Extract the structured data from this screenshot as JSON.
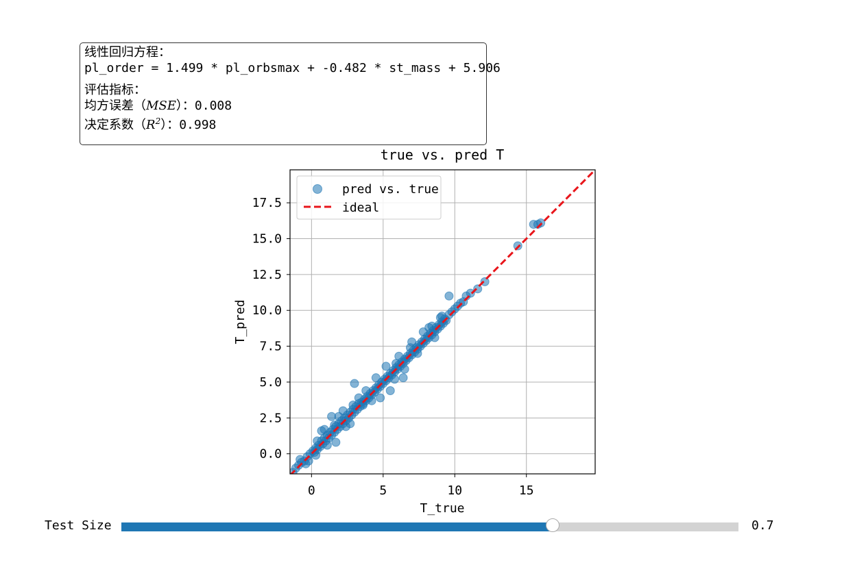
{
  "info_box": {
    "equation_heading": "线性回归方程：",
    "equation": "pl_order = 1.499 * pl_orbsmax + -0.482 * st_mass + 5.906",
    "metrics_heading": "评估指标：",
    "mse_prefix": "均方误差（",
    "mse_symbol": "MSE",
    "mse_suffix": "）：0.008",
    "r2_prefix": "决定系数（",
    "r2_symbol": "R",
    "r2_exp": "2",
    "r2_suffix": "）：0.998"
  },
  "slider": {
    "label": "Test Size",
    "value_text": "0.7",
    "value": 0.7,
    "fill_fraction": 0.7,
    "fill_color": "#1f77b4",
    "track_color": "#d3d3d3"
  },
  "chart_data": {
    "type": "scatter",
    "title": "true vs. pred T",
    "xlabel": "T_true",
    "ylabel": "T_pred",
    "xlim": [
      -1.5,
      19.8
    ],
    "ylim": [
      -1.4,
      19.8
    ],
    "xticks": [
      0,
      5,
      10,
      15
    ],
    "xtick_labels": [
      "0",
      "5",
      "10",
      "15"
    ],
    "yticks": [
      0.0,
      2.5,
      5.0,
      7.5,
      10.0,
      12.5,
      15.0,
      17.5
    ],
    "ytick_labels": [
      "0.0",
      "2.5",
      "5.0",
      "7.5",
      "10.0",
      "12.5",
      "15.0",
      "17.5"
    ],
    "grid": true,
    "legend_position": "top-left",
    "series": [
      {
        "name": "pred vs. true",
        "kind": "scatter",
        "color": "#1f77b4",
        "alpha": 0.55,
        "points": [
          [
            -1.3,
            -1.3
          ],
          [
            -1.1,
            -1.0
          ],
          [
            -0.9,
            -0.8
          ],
          [
            -0.7,
            -0.6
          ],
          [
            -0.5,
            -0.5
          ],
          [
            -0.3,
            -0.2
          ],
          [
            -0.1,
            0.0
          ],
          [
            -0.2,
            -0.5
          ],
          [
            0.1,
            0.2
          ],
          [
            0.2,
            0.1
          ],
          [
            0.3,
            0.4
          ],
          [
            0.4,
            0.3
          ],
          [
            0.5,
            0.6
          ],
          [
            0.6,
            0.5
          ],
          [
            0.7,
            0.9
          ],
          [
            0.8,
            0.7
          ],
          [
            0.9,
            1.1
          ],
          [
            1.0,
            0.9
          ],
          [
            1.1,
            1.3
          ],
          [
            1.2,
            1.1
          ],
          [
            1.3,
            1.5
          ],
          [
            1.4,
            1.3
          ],
          [
            1.5,
            1.7
          ],
          [
            1.6,
            1.5
          ],
          [
            1.7,
            1.9
          ],
          [
            1.8,
            1.7
          ],
          [
            1.9,
            2.1
          ],
          [
            2.0,
            1.9
          ],
          [
            2.1,
            2.3
          ],
          [
            2.2,
            2.1
          ],
          [
            2.3,
            2.5
          ],
          [
            2.4,
            2.3
          ],
          [
            2.5,
            2.7
          ],
          [
            2.6,
            2.5
          ],
          [
            2.7,
            2.9
          ],
          [
            2.8,
            2.7
          ],
          [
            2.9,
            3.1
          ],
          [
            3.0,
            2.9
          ],
          [
            3.1,
            3.3
          ],
          [
            3.2,
            3.1
          ],
          [
            3.3,
            3.5
          ],
          [
            3.4,
            3.3
          ],
          [
            3.5,
            3.6
          ],
          [
            3.6,
            3.5
          ],
          [
            3.7,
            3.8
          ],
          [
            3.8,
            3.7
          ],
          [
            3.9,
            4.0
          ],
          [
            4.0,
            3.9
          ],
          [
            4.1,
            4.2
          ],
          [
            4.2,
            4.1
          ],
          [
            4.3,
            4.4
          ],
          [
            4.4,
            4.3
          ],
          [
            4.5,
            4.6
          ],
          [
            4.6,
            4.5
          ],
          [
            4.7,
            4.8
          ],
          [
            4.8,
            4.7
          ],
          [
            4.9,
            5.0
          ],
          [
            5.0,
            4.9
          ],
          [
            5.1,
            5.2
          ],
          [
            5.2,
            5.1
          ],
          [
            5.3,
            5.4
          ],
          [
            5.4,
            5.3
          ],
          [
            5.5,
            5.6
          ],
          [
            5.6,
            5.5
          ],
          [
            5.7,
            5.8
          ],
          [
            5.8,
            5.7
          ],
          [
            5.9,
            6.0
          ],
          [
            6.0,
            5.9
          ],
          [
            6.1,
            6.2
          ],
          [
            6.2,
            6.1
          ],
          [
            6.3,
            6.4
          ],
          [
            6.4,
            6.3
          ],
          [
            6.5,
            6.6
          ],
          [
            6.6,
            6.5
          ],
          [
            6.7,
            6.8
          ],
          [
            6.8,
            6.7
          ],
          [
            6.9,
            7.0
          ],
          [
            7.0,
            6.9
          ],
          [
            7.1,
            7.2
          ],
          [
            7.2,
            7.1
          ],
          [
            7.3,
            7.4
          ],
          [
            7.4,
            7.3
          ],
          [
            7.5,
            7.6
          ],
          [
            7.6,
            7.5
          ],
          [
            7.7,
            7.8
          ],
          [
            7.8,
            7.7
          ],
          [
            7.9,
            8.0
          ],
          [
            8.0,
            7.9
          ],
          [
            8.1,
            8.2
          ],
          [
            8.2,
            8.1
          ],
          [
            8.3,
            8.4
          ],
          [
            8.4,
            8.3
          ],
          [
            8.5,
            8.6
          ],
          [
            8.6,
            8.5
          ],
          [
            8.7,
            8.8
          ],
          [
            8.8,
            8.7
          ],
          [
            8.9,
            9.0
          ],
          [
            9.0,
            8.9
          ],
          [
            9.1,
            9.2
          ],
          [
            9.2,
            9.1
          ],
          [
            9.3,
            9.4
          ],
          [
            9.4,
            9.3
          ],
          [
            9.6,
            9.7
          ],
          [
            9.8,
            9.9
          ],
          [
            10.0,
            10.1
          ],
          [
            10.2,
            10.3
          ],
          [
            10.4,
            10.5
          ],
          [
            10.6,
            10.6
          ],
          [
            11.1,
            11.2
          ],
          [
            11.6,
            11.5
          ],
          [
            12.1,
            12.0
          ],
          [
            14.4,
            14.5
          ],
          [
            15.5,
            16.0
          ],
          [
            15.8,
            16.0
          ],
          [
            16.0,
            16.1
          ],
          [
            9.6,
            11.0
          ],
          [
            3.0,
            4.9
          ],
          [
            5.5,
            4.4
          ],
          [
            6.4,
            5.3
          ],
          [
            4.8,
            3.9
          ],
          [
            2.7,
            2.1
          ],
          [
            1.7,
            0.8
          ],
          [
            0.7,
            1.6
          ],
          [
            1.4,
            2.6
          ],
          [
            2.2,
            3.0
          ],
          [
            3.3,
            3.9
          ],
          [
            4.5,
            5.3
          ],
          [
            5.2,
            6.1
          ],
          [
            6.1,
            6.8
          ],
          [
            7.0,
            7.8
          ],
          [
            7.8,
            8.5
          ],
          [
            8.4,
            8.9
          ],
          [
            9.1,
            9.6
          ],
          [
            8.6,
            8.1
          ],
          [
            7.4,
            7.0
          ],
          [
            6.5,
            5.9
          ],
          [
            5.8,
            5.2
          ],
          [
            3.6,
            3.4
          ],
          [
            2.4,
            1.9
          ],
          [
            1.1,
            0.6
          ],
          [
            0.3,
            -0.1
          ],
          [
            -0.4,
            -0.7
          ],
          [
            0.9,
            1.7
          ],
          [
            1.9,
            2.6
          ],
          [
            3.8,
            4.4
          ],
          [
            4.2,
            3.7
          ],
          [
            5.9,
            6.3
          ],
          [
            6.9,
            7.4
          ],
          [
            8.2,
            8.8
          ],
          [
            9.0,
            9.5
          ],
          [
            2.9,
            3.4
          ],
          [
            1.6,
            2.0
          ],
          [
            0.4,
            0.9
          ],
          [
            -0.8,
            -0.4
          ],
          [
            10.8,
            11.0
          ]
        ]
      },
      {
        "name": "ideal",
        "kind": "line",
        "color": "#e8151b",
        "dash": "dashed",
        "x": [
          -1.5,
          19.8
        ],
        "y": [
          -1.5,
          19.8
        ]
      }
    ]
  }
}
